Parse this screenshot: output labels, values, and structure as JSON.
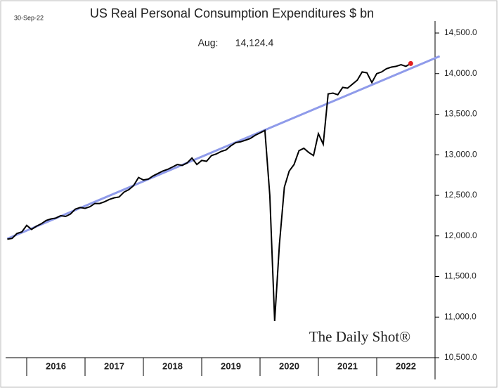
{
  "chart_data": {
    "type": "line",
    "title": "US Real Personal Consumption Expenditures $ bn",
    "date": "30-Sep-22",
    "annotation": {
      "label": "Aug:",
      "value": 14124.4,
      "value_label": "14,124.4"
    },
    "source": "The Daily Shot®",
    "x": [
      2015.667,
      2015.75,
      2015.833,
      2015.917,
      2016,
      2016.083,
      2016.167,
      2016.25,
      2016.333,
      2016.417,
      2016.5,
      2016.583,
      2016.667,
      2016.75,
      2016.833,
      2016.917,
      2017,
      2017.083,
      2017.167,
      2017.25,
      2017.333,
      2017.417,
      2017.5,
      2017.583,
      2017.667,
      2017.75,
      2017.833,
      2017.917,
      2018,
      2018.083,
      2018.167,
      2018.25,
      2018.333,
      2018.417,
      2018.5,
      2018.583,
      2018.667,
      2018.75,
      2018.833,
      2018.917,
      2019,
      2019.083,
      2019.167,
      2019.25,
      2019.333,
      2019.417,
      2019.5,
      2019.583,
      2019.667,
      2019.75,
      2019.833,
      2019.917,
      2020,
      2020.083,
      2020.167,
      2020.25,
      2020.333,
      2020.417,
      2020.5,
      2020.583,
      2020.667,
      2020.75,
      2020.833,
      2020.917,
      2021,
      2021.083,
      2021.167,
      2021.25,
      2021.333,
      2021.417,
      2021.5,
      2021.583,
      2021.667,
      2021.75,
      2021.833,
      2021.917,
      2022,
      2022.083,
      2022.167,
      2022.25,
      2022.333,
      2022.417,
      2022.5,
      2022.583
    ],
    "series": [
      {
        "color": "#000000",
        "values": [
          11960,
          11970,
          12030,
          12050,
          12130,
          12080,
          12120,
          12150,
          12190,
          12210,
          12220,
          12250,
          12240,
          12270,
          12330,
          12350,
          12340,
          12360,
          12400,
          12400,
          12420,
          12450,
          12470,
          12480,
          12540,
          12570,
          12620,
          12720,
          12690,
          12700,
          12740,
          12770,
          12800,
          12820,
          12850,
          12880,
          12870,
          12900,
          12960,
          12880,
          12930,
          12920,
          12990,
          13010,
          13040,
          13060,
          13110,
          13150,
          13160,
          13180,
          13200,
          13240,
          13270,
          13300,
          12500,
          10950,
          11900,
          12600,
          12800,
          12880,
          13050,
          13080,
          13030,
          12990,
          13260,
          13130,
          13750,
          13760,
          13740,
          13830,
          13820,
          13870,
          13920,
          14020,
          14010,
          13890,
          14000,
          14020,
          14060,
          14080,
          14090,
          14110,
          14090,
          14124.4
        ]
      },
      {
        "color": "#8f9bea",
        "x": [
          2015.667,
          2023.08
        ],
        "values": [
          11965,
          14214
        ]
      }
    ],
    "last_point_color": "#e02020",
    "xlim": [
      2015.6,
      2023.1
    ],
    "xticks": [
      2016,
      2017,
      2018,
      2019,
      2020,
      2021,
      2022,
      2023
    ],
    "xtick_labels": [
      {
        "value": 2016.5,
        "label": "2016"
      },
      {
        "value": 2017.5,
        "label": "2017"
      },
      {
        "value": 2018.5,
        "label": "2018"
      },
      {
        "value": 2019.5,
        "label": "2019"
      },
      {
        "value": 2020.5,
        "label": "2020"
      },
      {
        "value": 2021.5,
        "label": "2021"
      },
      {
        "value": 2022.5,
        "label": "2022"
      }
    ],
    "ylim": [
      10500,
      14500
    ],
    "yticks": [
      {
        "value": 10500,
        "label": "10,500.0"
      },
      {
        "value": 11000,
        "label": "11,000.0"
      },
      {
        "value": 11500,
        "label": "11,500.0"
      },
      {
        "value": 12000,
        "label": "12,000.0"
      },
      {
        "value": 12500,
        "label": "12,500.0"
      },
      {
        "value": 13000,
        "label": "13,000.0"
      },
      {
        "value": 13500,
        "label": "13,500.0"
      },
      {
        "value": 14000,
        "label": "14,000.0"
      },
      {
        "value": 14500,
        "label": "14,500.0"
      }
    ]
  }
}
